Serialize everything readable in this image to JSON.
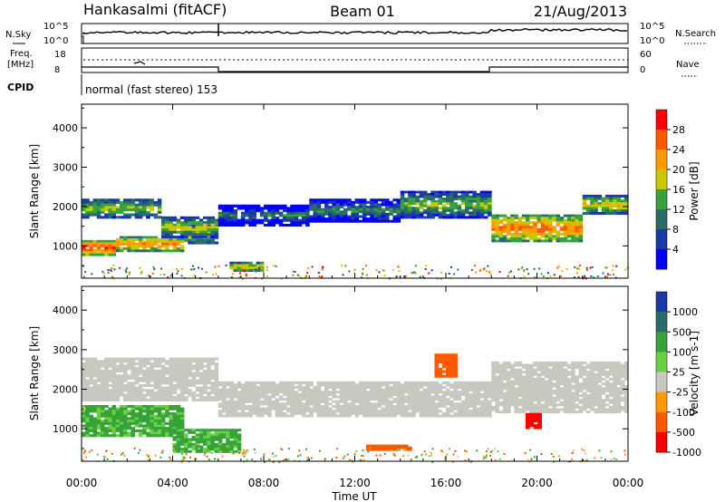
{
  "header": {
    "station": "Hankasalmi (fitACF)",
    "beam": "Beam 01",
    "date": "21/Aug/2013"
  },
  "noise_panel": {
    "left_label": "N.Sky",
    "right_label": "N.Search",
    "left_ticks": [
      "10^5",
      "10^0"
    ],
    "right_ticks": [
      "10^5",
      "10^0"
    ]
  },
  "freq_panel": {
    "left_label_1": "Freq.",
    "left_label_2": "[MHz]",
    "right_label": "Nave",
    "left_ticks": [
      "18",
      "8"
    ],
    "right_ticks": [
      "60",
      "0"
    ]
  },
  "cpid": {
    "label": "CPID",
    "value": "normal (fast stereo) 153"
  },
  "chart_data": [
    {
      "type": "heatmap",
      "name": "power",
      "ylabel": "Slant Range [km]",
      "yticks": [
        "4000",
        "3000",
        "2000",
        "1000"
      ],
      "ylim": [
        180,
        4600
      ],
      "colorbar_label": "Power [dB]",
      "colorbar_ticks": [
        "28",
        "24",
        "20",
        "16",
        "12",
        "8",
        "4"
      ],
      "colorbar_colors": [
        "#ff0000",
        "#ff5a00",
        "#ff9a00",
        "#c9c800",
        "#36a33a",
        "#2a6a6a",
        "#1a3aa8",
        "#0000ff"
      ],
      "xlim": [
        "00:00",
        "24:00"
      ],
      "bands": [
        {
          "start_h": 0.0,
          "end_h": 1.5,
          "range_km": [
            750,
            1150
          ],
          "power_db": 30
        },
        {
          "start_h": 1.5,
          "end_h": 4.5,
          "range_km": [
            850,
            1250
          ],
          "power_db": 26
        },
        {
          "start_h": 4.5,
          "end_h": 6.0,
          "range_km": [
            1050,
            1550
          ],
          "power_db": 22
        },
        {
          "start_h": 0.0,
          "end_h": 3.5,
          "range_km": [
            1700,
            2200
          ],
          "power_db": 20
        },
        {
          "start_h": 3.5,
          "end_h": 6.0,
          "range_km": [
            1200,
            1750
          ],
          "power_db": 20
        },
        {
          "start_h": 6.0,
          "end_h": 10.0,
          "range_km": [
            1500,
            2050
          ],
          "power_db": 12
        },
        {
          "start_h": 10.0,
          "end_h": 14.0,
          "range_km": [
            1600,
            2200
          ],
          "power_db": 14
        },
        {
          "start_h": 14.0,
          "end_h": 18.0,
          "range_km": [
            1700,
            2400
          ],
          "power_db": 18
        },
        {
          "start_h": 18.0,
          "end_h": 22.0,
          "range_km": [
            1100,
            1800
          ],
          "power_db": 26
        },
        {
          "start_h": 22.0,
          "end_h": 24.0,
          "range_km": [
            1800,
            2300
          ],
          "power_db": 22
        },
        {
          "start_h": 6.5,
          "end_h": 8.0,
          "range_km": [
            350,
            600
          ],
          "power_db": 24
        }
      ]
    },
    {
      "type": "heatmap",
      "name": "velocity",
      "ylabel": "Slant Range [km]",
      "yticks": [
        "4000",
        "3000",
        "2000",
        "1000"
      ],
      "ylim": [
        180,
        4600
      ],
      "colorbar_label": "Velocity [m s-1]",
      "colorbar_ticks": [
        "1000",
        "500",
        "100",
        "25",
        "-25",
        "-100",
        "-500",
        "-1000"
      ],
      "colorbar_colors": [
        "#1a3aa8",
        "#2a6a6a",
        "#36a33a",
        "#6ad040",
        "#c8c8c0",
        "#ff9a00",
        "#ff5a00",
        "#ff0000"
      ],
      "xlim": [
        "00:00",
        "24:00"
      ],
      "xlabel": "Time UT",
      "xticks": [
        "00:00",
        "04:00",
        "08:00",
        "12:00",
        "16:00",
        "20:00",
        "00:00"
      ],
      "bands": [
        {
          "start_h": 0.0,
          "end_h": 4.5,
          "range_km": [
            800,
            1600
          ],
          "velocity": 150
        },
        {
          "start_h": 4.0,
          "end_h": 7.0,
          "range_km": [
            400,
            1000
          ],
          "velocity": 150
        },
        {
          "start_h": 0.0,
          "end_h": 6.0,
          "range_km": [
            1700,
            2800
          ],
          "velocity": 0
        },
        {
          "start_h": 6.0,
          "end_h": 18.0,
          "range_km": [
            1300,
            2200
          ],
          "velocity": 0
        },
        {
          "start_h": 18.0,
          "end_h": 24.0,
          "range_km": [
            1400,
            2700
          ],
          "velocity": 0
        },
        {
          "start_h": 12.5,
          "end_h": 14.5,
          "range_km": [
            450,
            600
          ],
          "velocity": -300
        },
        {
          "start_h": 15.5,
          "end_h": 16.5,
          "range_km": [
            2300,
            2900
          ],
          "velocity": -300
        },
        {
          "start_h": 19.5,
          "end_h": 20.2,
          "range_km": [
            1000,
            1400
          ],
          "velocity": -800
        }
      ]
    }
  ]
}
